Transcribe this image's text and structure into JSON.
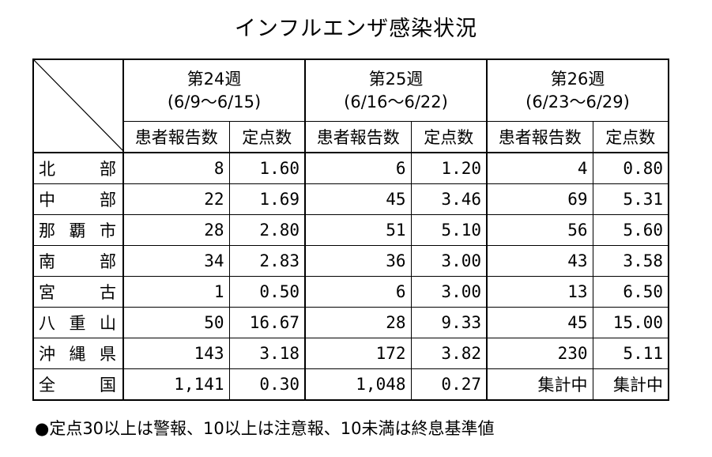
{
  "title": "インフルエンザ感染状況",
  "weeks": [
    {
      "label": "第24週",
      "range": "(6/9〜6/15)"
    },
    {
      "label": "第25週",
      "range": "(6/16〜6/22)"
    },
    {
      "label": "第26週",
      "range": "(6/23〜6/29)"
    }
  ],
  "subheaders": {
    "reports": "患者報告数",
    "point": "定点数"
  },
  "rows": [
    {
      "region": "北部",
      "w24": {
        "reports": "8",
        "point": "1.60"
      },
      "w25": {
        "reports": "6",
        "point": "1.20"
      },
      "w26": {
        "reports": "4",
        "point": "0.80"
      }
    },
    {
      "region": "中部",
      "w24": {
        "reports": "22",
        "point": "1.69"
      },
      "w25": {
        "reports": "45",
        "point": "3.46"
      },
      "w26": {
        "reports": "69",
        "point": "5.31"
      }
    },
    {
      "region": "那覇市",
      "w24": {
        "reports": "28",
        "point": "2.80"
      },
      "w25": {
        "reports": "51",
        "point": "5.10"
      },
      "w26": {
        "reports": "56",
        "point": "5.60"
      }
    },
    {
      "region": "南部",
      "w24": {
        "reports": "34",
        "point": "2.83"
      },
      "w25": {
        "reports": "36",
        "point": "3.00"
      },
      "w26": {
        "reports": "43",
        "point": "3.58"
      }
    },
    {
      "region": "宮古",
      "w24": {
        "reports": "1",
        "point": "0.50"
      },
      "w25": {
        "reports": "6",
        "point": "3.00"
      },
      "w26": {
        "reports": "13",
        "point": "6.50"
      }
    },
    {
      "region": "八重山",
      "w24": {
        "reports": "50",
        "point": "16.67"
      },
      "w25": {
        "reports": "28",
        "point": "9.33"
      },
      "w26": {
        "reports": "45",
        "point": "15.00"
      }
    },
    {
      "region": "沖縄県",
      "w24": {
        "reports": "143",
        "point": "3.18"
      },
      "w25": {
        "reports": "172",
        "point": "3.82"
      },
      "w26": {
        "reports": "230",
        "point": "5.11"
      }
    },
    {
      "region": "全国",
      "w24": {
        "reports": "1,141",
        "point": "0.30"
      },
      "w25": {
        "reports": "1,048",
        "point": "0.27"
      },
      "w26": {
        "reports": "集計中",
        "point": "集計中"
      }
    }
  ],
  "note": "●定点30以上は警報、10以上は注意報、10未満は終息基準値"
}
